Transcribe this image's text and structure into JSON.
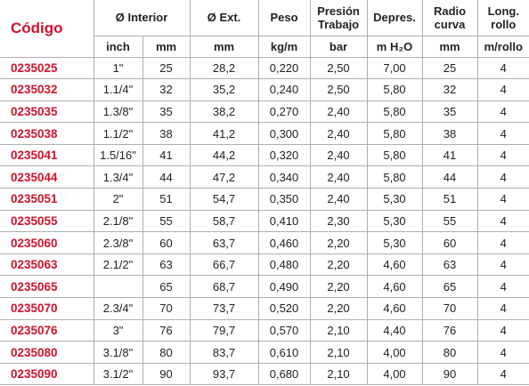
{
  "header": {
    "code": "Código",
    "columns": [
      "Ø Interior",
      "Ø Ext.",
      "Peso",
      "Presión Trabajo",
      "Depres.",
      "Radio curva",
      "Long. rollo"
    ]
  },
  "units": [
    "inch",
    "mm",
    "mm",
    "kg/m",
    "bar",
    "m H₂O",
    "mm",
    "m/rollo"
  ],
  "rows": [
    [
      "0235025",
      "1\"",
      "25",
      "28,2",
      "0,220",
      "2,50",
      "7,00",
      "25",
      "4"
    ],
    [
      "0235032",
      "1.1/4\"",
      "32",
      "35,2",
      "0,240",
      "2,50",
      "5,80",
      "32",
      "4"
    ],
    [
      "0235035",
      "1.3/8\"",
      "35",
      "38,2",
      "0,270",
      "2,40",
      "5,80",
      "35",
      "4"
    ],
    [
      "0235038",
      "1.1/2\"",
      "38",
      "41,2",
      "0,300",
      "2,40",
      "5,80",
      "38",
      "4"
    ],
    [
      "0235041",
      "1.5/16\"",
      "41",
      "44,2",
      "0,320",
      "2,40",
      "5,80",
      "41",
      "4"
    ],
    [
      "0235044",
      "1.3/4\"",
      "44",
      "47,2",
      "0,340",
      "2,40",
      "5,80",
      "44",
      "4"
    ],
    [
      "0235051",
      "2\"",
      "51",
      "54,7",
      "0,350",
      "2,40",
      "5,30",
      "51",
      "4"
    ],
    [
      "0235055",
      "2.1/8\"",
      "55",
      "58,7",
      "0,410",
      "2,30",
      "5,30",
      "55",
      "4"
    ],
    [
      "0235060",
      "2.3/8\"",
      "60",
      "63,7",
      "0,460",
      "2,20",
      "5,30",
      "60",
      "4"
    ],
    [
      "0235063",
      "2.1/2\"",
      "63",
      "66,7",
      "0,480",
      "2,20",
      "4,60",
      "63",
      "4"
    ],
    [
      "0235065",
      null,
      "65",
      "68,7",
      "0,490",
      "2,20",
      "4,60",
      "65",
      "4"
    ],
    [
      "0235070",
      "2.3/4\"",
      "70",
      "73,7",
      "0,520",
      "2,20",
      "4,60",
      "70",
      "4"
    ],
    [
      "0235076",
      "3\"",
      "76",
      "79,7",
      "0,570",
      "2,10",
      "4,40",
      "76",
      "4"
    ],
    [
      "0235080",
      "3.1/8\"",
      "80",
      "83,7",
      "0,610",
      "2,10",
      "4,00",
      "80",
      "4"
    ],
    [
      "0235090",
      "3.1/2\"",
      "90",
      "93,7",
      "0,680",
      "2,10",
      "4,00",
      "90",
      "4"
    ]
  ]
}
